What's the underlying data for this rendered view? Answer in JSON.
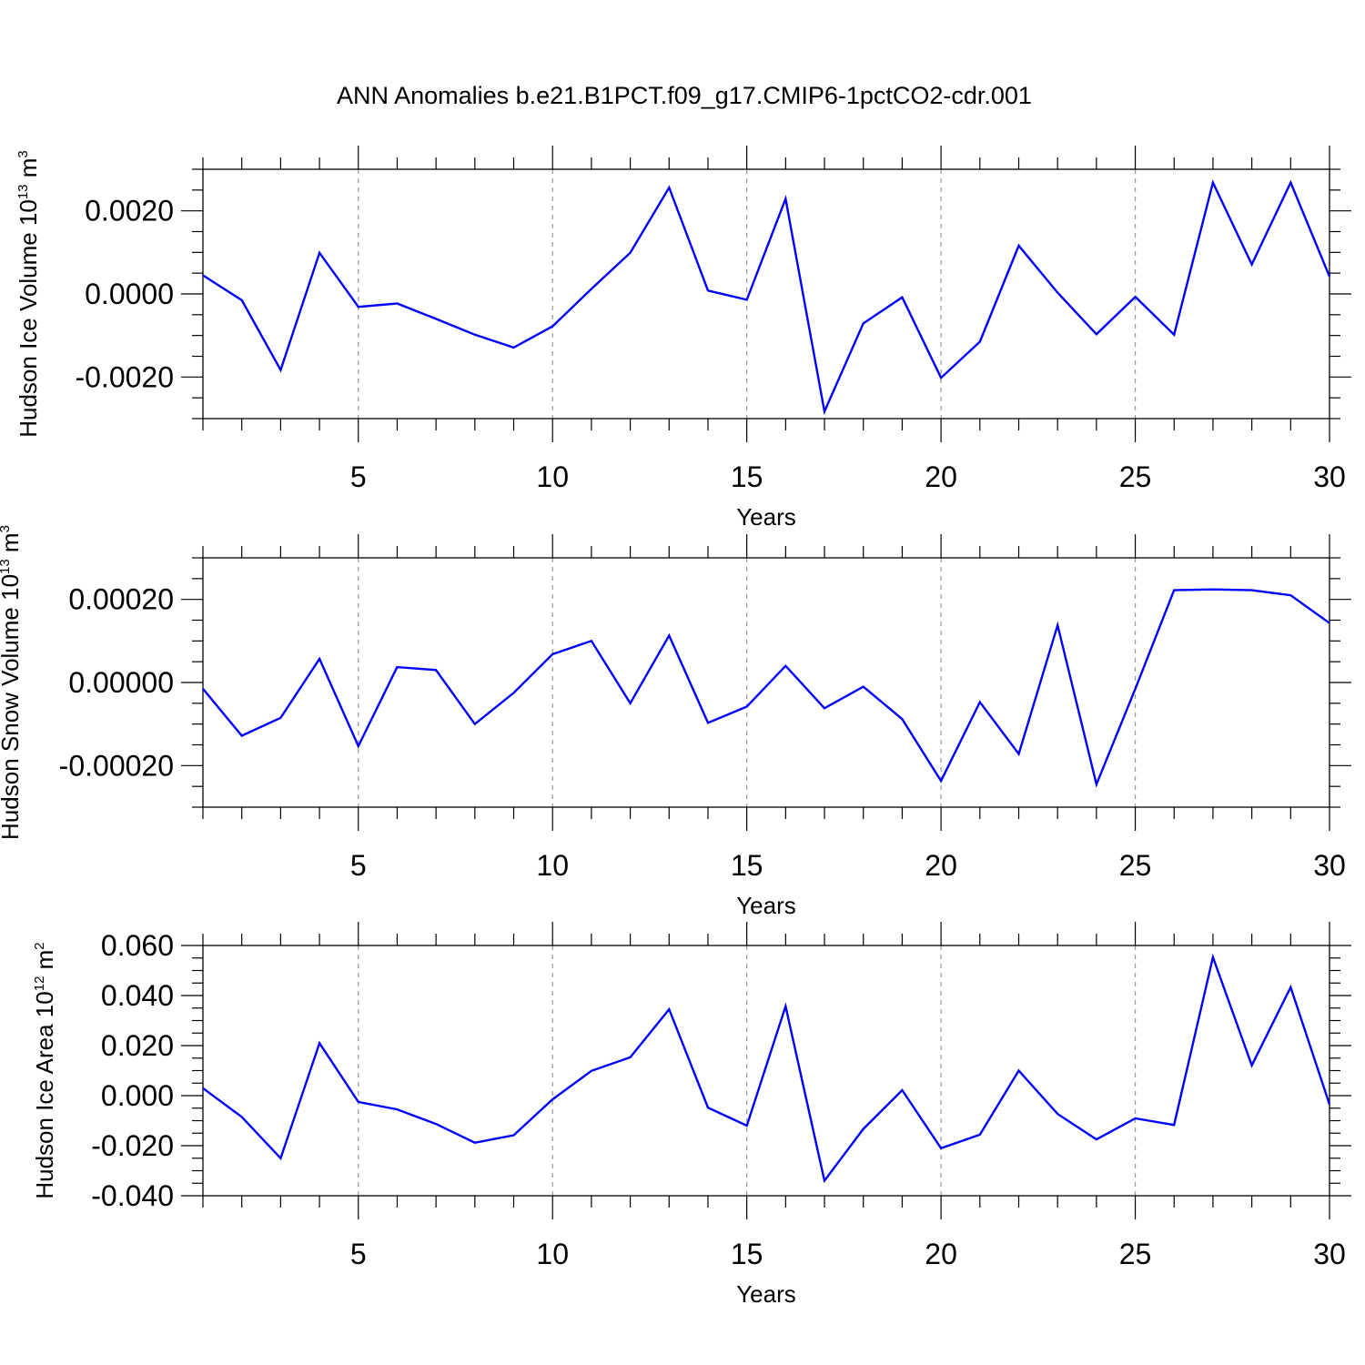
{
  "title": "ANN Anomalies b.e21.B1PCT.f09_g17.CMIP6-1pctCO2-cdr.001",
  "chart_data": [
    {
      "type": "line",
      "title": "ANN Anomalies b.e21.B1PCT.f09_g17.CMIP6-1pctCO2-cdr.001",
      "ylabel": {
        "main": "Hudson Ice Volume 10",
        "exp": "13",
        "unit": " m",
        "unit_exp": "3"
      },
      "xlabel": "Years",
      "xlim": [
        1,
        30
      ],
      "ylim": [
        -0.003,
        0.003
      ],
      "x_ticks": [
        5,
        10,
        15,
        20,
        25,
        30
      ],
      "y_ticks": [
        -0.002,
        0.0,
        0.002
      ],
      "y_tick_labels": [
        "-0.0020",
        "0.0000",
        "0.0020"
      ],
      "grid": "vertical dashed at major x ticks",
      "color": "#0000ff",
      "series": [
        {
          "x": [
            1,
            2,
            3,
            4,
            5,
            6,
            7,
            8,
            9,
            10,
            11,
            12,
            13,
            14,
            15,
            16,
            17,
            18,
            19,
            20,
            21,
            22,
            23,
            24,
            25,
            26,
            27,
            28,
            29,
            30
          ],
          "values": [
            0.00045,
            -0.00015,
            -0.00183,
            0.00099,
            -0.00031,
            -0.00023,
            -0.0006,
            -0.00098,
            -0.00129,
            -0.00078,
            0.00012,
            0.00099,
            0.00256,
            8e-05,
            -0.00014,
            0.00229,
            -0.00283,
            -0.00071,
            -8e-05,
            -0.00202,
            -0.00115,
            0.00116,
            3e-05,
            -0.00097,
            -7e-05,
            -0.00098,
            0.00268,
            0.00071,
            0.00268,
            0.00042
          ]
        }
      ]
    },
    {
      "type": "line",
      "ylabel": {
        "main": "Hudson Snow Volume 10",
        "exp": "13",
        "unit": " m",
        "unit_exp": "3"
      },
      "xlabel": "Years",
      "xlim": [
        1,
        30
      ],
      "ylim": [
        -0.0003,
        0.0003
      ],
      "x_ticks": [
        5,
        10,
        15,
        20,
        25,
        30
      ],
      "y_ticks": [
        -0.0002,
        0.0,
        0.0002
      ],
      "y_tick_labels": [
        "-0.00020",
        "0.00000",
        "0.00020"
      ],
      "grid": "vertical dashed at major x ticks",
      "color": "#0000ff",
      "series": [
        {
          "x": [
            1,
            2,
            3,
            4,
            5,
            6,
            7,
            8,
            9,
            10,
            11,
            12,
            13,
            14,
            15,
            16,
            17,
            18,
            19,
            20,
            21,
            22,
            23,
            24,
            25,
            26,
            27,
            28,
            29,
            30
          ],
          "values": [
            -1.5e-05,
            -0.000128,
            -8.5e-05,
            5.7e-05,
            -0.000153,
            3.7e-05,
            3e-05,
            -0.0001,
            -2.5e-05,
            6.8e-05,
            0.0001,
            -5e-05,
            0.000113,
            -9.7e-05,
            -5.8e-05,
            4e-05,
            -6.2e-05,
            -1e-05,
            -8.8e-05,
            -0.000237,
            -4.7e-05,
            -0.000172,
            0.000138,
            -0.000245,
            -1.5e-05,
            0.000222,
            0.000224,
            0.000222,
            0.00021,
            0.000143
          ]
        }
      ]
    },
    {
      "type": "line",
      "ylabel": {
        "main": "Hudson Ice Area 10",
        "exp": "12",
        "unit": " m",
        "unit_exp": "2"
      },
      "xlabel": "Years",
      "xlim": [
        1,
        30
      ],
      "ylim": [
        -0.04,
        0.06
      ],
      "x_ticks": [
        5,
        10,
        15,
        20,
        25,
        30
      ],
      "y_ticks": [
        -0.04,
        -0.02,
        0.0,
        0.02,
        0.04,
        0.06
      ],
      "y_tick_labels": [
        "-0.040",
        "-0.020",
        "0.000",
        "0.020",
        "0.040",
        "0.060"
      ],
      "grid": "vertical dashed at major x ticks",
      "color": "#0000ff",
      "series": [
        {
          "x": [
            1,
            2,
            3,
            4,
            5,
            6,
            7,
            8,
            9,
            10,
            11,
            12,
            13,
            14,
            15,
            16,
            17,
            18,
            19,
            20,
            21,
            22,
            23,
            24,
            25,
            26,
            27,
            28,
            29,
            30
          ],
          "values": [
            0.003,
            -0.0085,
            -0.025,
            0.021,
            -0.0025,
            -0.0055,
            -0.0113,
            -0.0188,
            -0.0158,
            -0.0015,
            0.0099,
            0.0153,
            0.0345,
            -0.0048,
            -0.012,
            0.0357,
            -0.034,
            -0.0133,
            0.0022,
            -0.021,
            -0.0156,
            0.01,
            -0.0073,
            -0.0175,
            -0.0091,
            -0.0117,
            0.0553,
            0.0121,
            0.0433,
            -0.0035
          ]
        }
      ]
    }
  ]
}
